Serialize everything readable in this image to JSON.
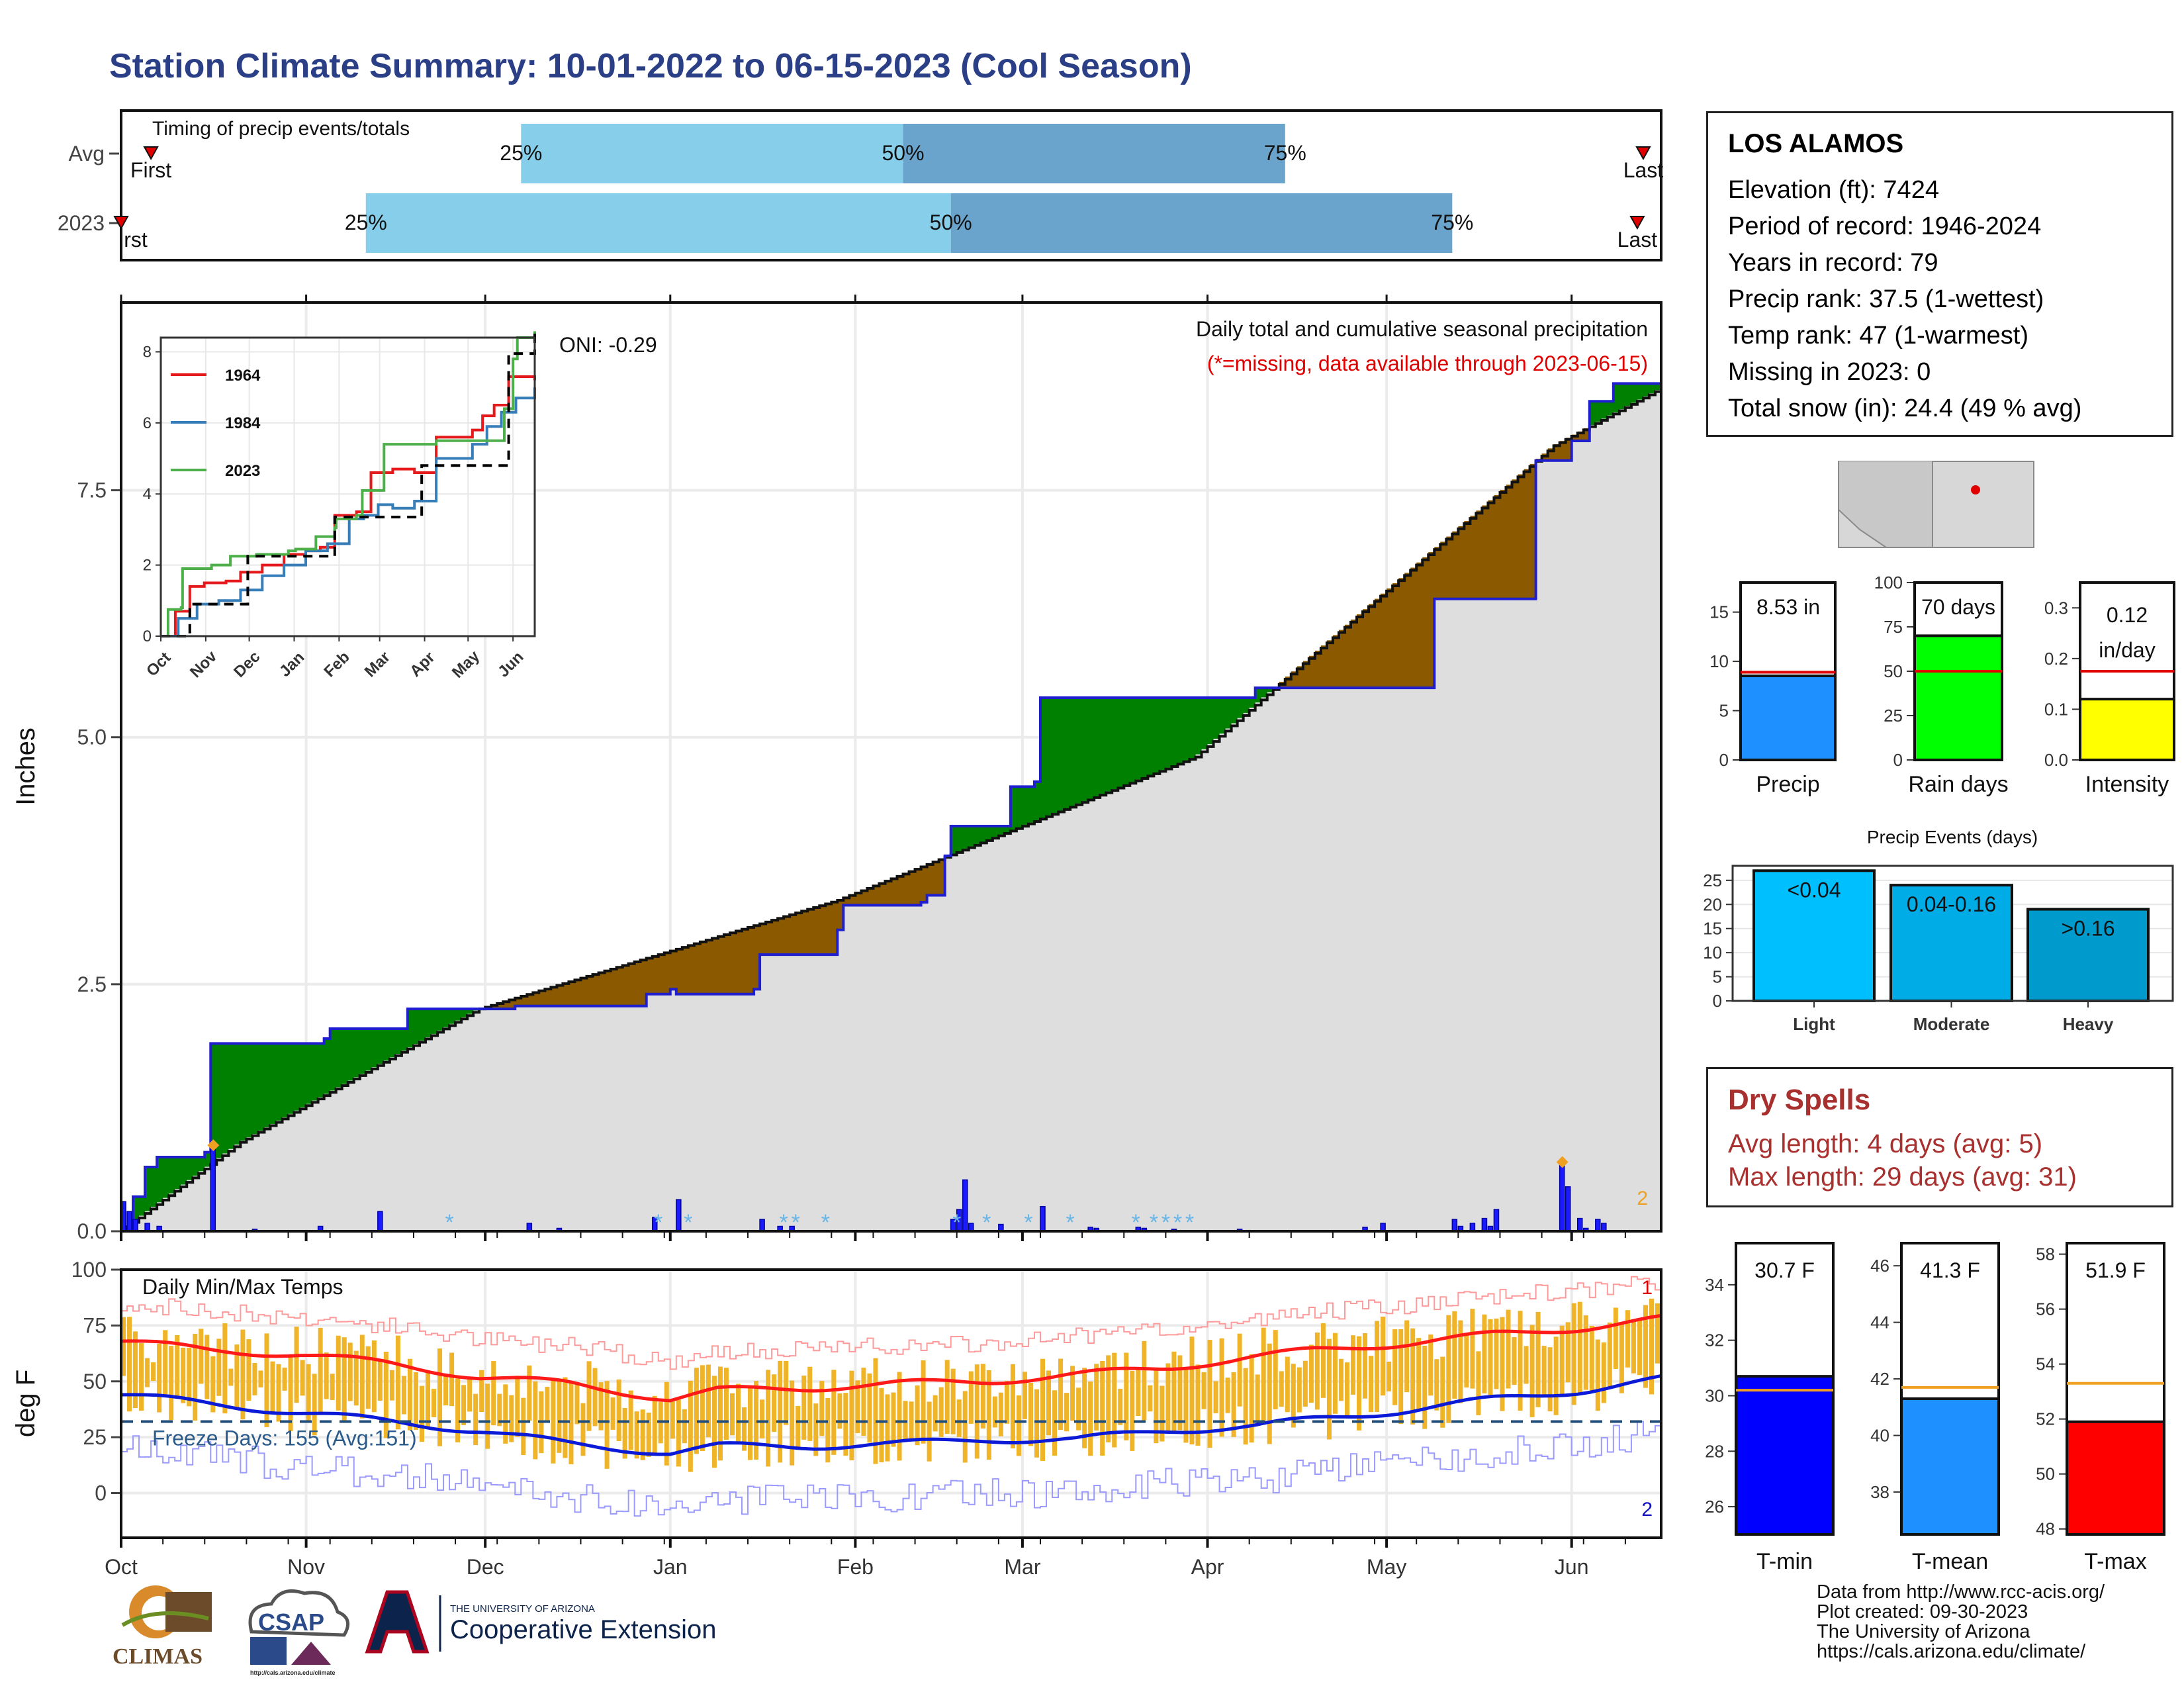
{
  "title": "Station Climate Summary: 10-01-2022 to 06-15-2023 (Cool Season)",
  "station": {
    "name": "LOS ALAMOS",
    "lines": [
      "Elevation (ft): 7424",
      "Period of record: 1946-2024",
      "Years in record: 79",
      "Precip rank: 37.5 (1-wettest)",
      "Temp rank: 47 (1-warmest)",
      "Missing in 2023: 0",
      "Total snow (in): 24.4 (49 % avg)"
    ]
  },
  "dry_spells": {
    "title": "Dry Spells",
    "avg": "Avg length: 4 days (avg: 5)",
    "max": "Max length: 29 days (avg: 31)"
  },
  "credits": [
    "Data from http://www.rcc-acis.org/",
    "Plot created: 09-30-2023",
    "The University of Arizona",
    "https://cals.arizona.edu/climate/"
  ],
  "logos": {
    "climas": "CLIMAS",
    "csap": "CSAP",
    "csap_url": "http://cals.arizona.edu/climate",
    "ua_small": "THE UNIVERSITY OF ARIZONA",
    "ua_big": "Cooperative Extension"
  },
  "colors": {
    "green": "#008000",
    "brown": "#8b5a00",
    "blue_line": "#1f1fd0",
    "bar_blue": "#1b1bff",
    "gray_fill": "#dedede",
    "q_light": "#87ceeb",
    "q_dark": "#6aa4cc",
    "temp_bar": "#f0b429",
    "tmax_line": "#ff1a1a",
    "tmin_line": "#0b1ad6"
  },
  "chart_data": [
    {
      "id": "timing",
      "type": "bar",
      "title": "Timing of precip events/totals",
      "rows": [
        {
          "label": "Avg",
          "first": "First",
          "last": "Last",
          "first_day": 5,
          "last_day": 255,
          "q25": 67,
          "q50": 131,
          "q75": 195
        },
        {
          "label": "2023",
          "first": "rst",
          "last": "Last",
          "first_day": 0,
          "last_day": 254,
          "q25": 41,
          "q50": 139,
          "q75": 223
        }
      ],
      "quartile_labels": [
        "25%",
        "50%",
        "75%"
      ]
    },
    {
      "id": "precip",
      "type": "area",
      "title": "Daily total and cumulative seasonal precipitation",
      "subtitle": "(*=missing, data available through 2023-06-15)",
      "oni": "ONI: -0.29",
      "ylabel": "Inches",
      "ylim": [
        0,
        9.4
      ],
      "yticks": [
        0.0,
        2.5,
        5.0,
        7.5
      ],
      "ytick_labels": [
        "0.0",
        "2.5",
        "5.0",
        "7.5"
      ],
      "corner_label": "2",
      "season_total": 8.53,
      "avg_x": [
        0,
        20,
        60,
        120,
        180,
        240,
        258
      ],
      "avg_y": [
        0.0,
        0.9,
        2.25,
        3.35,
        4.8,
        7.95,
        8.53
      ],
      "obs_x": [
        0,
        2,
        4,
        6,
        14,
        15,
        34,
        35,
        47,
        48,
        65,
        66,
        82,
        88,
        92,
        93,
        106,
        107,
        120,
        121,
        134,
        135,
        138,
        139,
        148,
        149,
        153,
        154,
        172,
        173,
        189,
        190,
        219,
        220,
        236,
        237,
        242,
        243,
        245,
        246,
        249,
        250,
        252,
        258
      ],
      "obs_y": [
        0.0,
        0.35,
        0.65,
        0.75,
        0.8,
        1.9,
        1.95,
        2.05,
        2.05,
        2.25,
        2.25,
        2.28,
        2.28,
        2.4,
        2.45,
        2.4,
        2.45,
        2.8,
        3.05,
        3.3,
        3.33,
        3.4,
        3.8,
        4.1,
        4.1,
        4.5,
        4.55,
        5.4,
        5.4,
        5.4,
        5.4,
        5.5,
        5.5,
        6.4,
        6.4,
        7.8,
        7.8,
        8.0,
        8.0,
        8.4,
        8.4,
        8.58,
        8.58,
        8.58
      ],
      "daily_bars": [
        [
          0,
          0.3
        ],
        [
          1,
          0.2
        ],
        [
          2,
          0.12
        ],
        [
          4,
          0.08
        ],
        [
          6,
          0.05
        ],
        [
          15,
          0.85
        ],
        [
          22,
          0.02
        ],
        [
          33,
          0.05
        ],
        [
          43,
          0.2
        ],
        [
          68,
          0.08
        ],
        [
          73,
          0.03
        ],
        [
          89,
          0.14
        ],
        [
          93,
          0.32
        ],
        [
          107,
          0.12
        ],
        [
          110,
          0.05
        ],
        [
          112,
          0.05
        ],
        [
          139,
          0.12
        ],
        [
          140,
          0.22
        ],
        [
          141,
          0.52
        ],
        [
          142,
          0.08
        ],
        [
          147,
          0.07
        ],
        [
          154,
          0.25
        ],
        [
          162,
          0.04
        ],
        [
          163,
          0.03
        ],
        [
          170,
          0.04
        ],
        [
          171,
          0.03
        ],
        [
          176,
          0.02
        ],
        [
          187,
          0.02
        ],
        [
          208,
          0.04
        ],
        [
          211,
          0.08
        ],
        [
          223,
          0.12
        ],
        [
          224,
          0.05
        ],
        [
          226,
          0.08
        ],
        [
          228,
          0.13
        ],
        [
          229,
          0.05
        ],
        [
          230,
          0.22
        ],
        [
          241,
          0.68
        ],
        [
          242,
          0.45
        ],
        [
          244,
          0.13
        ],
        [
          245,
          0.03
        ],
        [
          247,
          0.12
        ],
        [
          248,
          0.08
        ]
      ],
      "snow_marks": [
        55,
        90,
        95,
        111,
        113,
        118,
        140,
        145,
        152,
        159,
        170,
        173,
        175,
        177,
        179
      ],
      "record_markers": [
        15,
        241
      ],
      "inset": {
        "ylim": [
          0,
          8.4
        ],
        "yticks": [
          0,
          2,
          4,
          6,
          8
        ],
        "months": [
          "Oct",
          "Nov",
          "Dec",
          "Jan",
          "Feb",
          "Mar",
          "Apr",
          "May",
          "Jun"
        ],
        "series": [
          {
            "name": "1964",
            "color": "#e41a1c",
            "x": [
              0,
              10,
              20,
              30,
              45,
              55,
              70,
              85,
              100,
              110,
              120,
              135,
              145,
              160,
              175,
              190,
              205,
              215,
              222,
              230,
              240,
              258
            ],
            "y": [
              0.0,
              0.7,
              1.4,
              1.5,
              1.55,
              1.8,
              2.0,
              2.3,
              2.4,
              2.5,
              3.4,
              3.5,
              4.6,
              4.7,
              4.6,
              5.6,
              5.6,
              5.8,
              6.2,
              6.5,
              7.3,
              7.2
            ]
          },
          {
            "name": "1984",
            "color": "#377eb8",
            "x": [
              0,
              12,
              25,
              40,
              55,
              70,
              85,
              100,
              115,
              130,
              140,
              150,
              160,
              175,
              190,
              205,
              215,
              225,
              235,
              245,
              258
            ],
            "y": [
              0.0,
              0.5,
              0.9,
              1.0,
              1.3,
              1.7,
              2.0,
              2.4,
              2.6,
              3.3,
              3.4,
              3.7,
              3.6,
              3.8,
              5.0,
              5.0,
              5.4,
              5.9,
              6.3,
              6.7,
              7.0
            ]
          },
          {
            "name": "2023",
            "color": "#4daf4a",
            "x": [
              0,
              5,
              14,
              15,
              35,
              48,
              66,
              88,
              93,
              107,
              120,
              121,
              135,
              139,
              154,
              172,
              190,
              220,
              237,
              243,
              246,
              258
            ],
            "y": [
              0.0,
              0.75,
              0.8,
              1.9,
              2.0,
              2.25,
              2.3,
              2.4,
              2.45,
              2.8,
              3.05,
              3.3,
              3.4,
              4.1,
              5.4,
              5.4,
              5.5,
              5.5,
              6.4,
              7.8,
              8.4,
              8.58
            ]
          },
          {
            "name": "Avg",
            "color": "#000000",
            "x": [
              0,
              20,
              60,
              120,
              180,
              240,
              258
            ],
            "y": [
              0.0,
              0.9,
              2.25,
              3.35,
              4.8,
              7.95,
              8.53
            ]
          }
        ]
      }
    },
    {
      "id": "temps",
      "type": "bar",
      "title": "Daily Min/Max Temps",
      "ylabel": "deg F",
      "ylim": [
        -20,
        100
      ],
      "yticks": [
        0,
        25,
        50,
        75,
        100
      ],
      "freeze_label": "Freeze Days: 155 (Avg:151)",
      "freeze_line": 32,
      "label_top": "1",
      "label_bottom": "2",
      "months": [
        "Oct",
        "Nov",
        "Dec",
        "Jan",
        "Feb",
        "Mar",
        "Apr",
        "May",
        "Jun"
      ],
      "month_days": [
        0,
        31,
        61,
        92,
        123,
        151,
        182,
        212,
        243
      ],
      "tmax_x": [
        0,
        15,
        30,
        45,
        60,
        75,
        92,
        100,
        115,
        130,
        145,
        160,
        175,
        190,
        200,
        215,
        230,
        245,
        258
      ],
      "tmax_y": [
        68,
        64,
        62,
        58,
        52,
        49,
        42,
        46,
        47,
        49,
        50,
        53,
        56,
        61,
        64,
        67,
        71,
        74,
        78
      ],
      "tmin_x": [
        0,
        15,
        30,
        45,
        60,
        75,
        92,
        100,
        115,
        130,
        145,
        160,
        175,
        190,
        200,
        215,
        230,
        245,
        258
      ],
      "tmin_y": [
        44,
        40,
        36,
        32,
        28,
        22,
        18,
        21,
        21,
        22,
        24,
        24,
        28,
        30,
        33,
        37,
        42,
        46,
        51
      ]
    },
    {
      "id": "season_bars",
      "type": "bar",
      "categories": [
        "Precip",
        "Rain days",
        "Intensity"
      ],
      "values": [
        8.53,
        70,
        0.12
      ],
      "averages": [
        8.9,
        50,
        0.175
      ],
      "labels": [
        "8.53 in",
        "70 days",
        "0.12",
        "in/day"
      ],
      "ylims": [
        [
          0,
          18
        ],
        [
          0,
          100
        ],
        [
          0,
          0.35
        ]
      ],
      "yticks": [
        [
          0,
          5,
          10,
          15
        ],
        [
          0,
          25,
          50,
          75,
          100
        ],
        [
          0.0,
          0.1,
          0.2,
          0.3
        ]
      ],
      "ytick_labels": [
        [
          "0",
          "5",
          "10",
          "15"
        ],
        [
          "0",
          "25",
          "50",
          "75",
          "100"
        ],
        [
          "0.0",
          "0.1",
          "0.2",
          "0.3"
        ]
      ]
    },
    {
      "id": "precip_events",
      "type": "bar",
      "title": "Precip Events (days)",
      "categories": [
        "Light",
        "Moderate",
        "Heavy"
      ],
      "bar_labels": [
        "<0.04",
        "0.04-0.16",
        ">0.16"
      ],
      "values": [
        27,
        24,
        19
      ],
      "ylim": [
        0,
        28
      ],
      "yticks": [
        0,
        5,
        10,
        15,
        20,
        25
      ]
    },
    {
      "id": "temp_bars",
      "type": "bar",
      "categories": [
        "T-min",
        "T-mean",
        "T-max"
      ],
      "values": [
        30.7,
        41.3,
        51.9
      ],
      "labels": [
        "30.7 F",
        "41.3 F",
        "51.9 F"
      ],
      "averages": [
        30.2,
        41.7,
        53.3
      ],
      "ylims": [
        [
          25,
          35.5
        ],
        [
          36.5,
          46.8
        ],
        [
          47.8,
          58.4
        ]
      ],
      "yticks": [
        [
          26,
          28,
          30,
          32,
          34
        ],
        [
          38,
          40,
          42,
          44,
          46
        ],
        [
          48,
          50,
          52,
          54,
          56,
          58
        ]
      ]
    }
  ]
}
